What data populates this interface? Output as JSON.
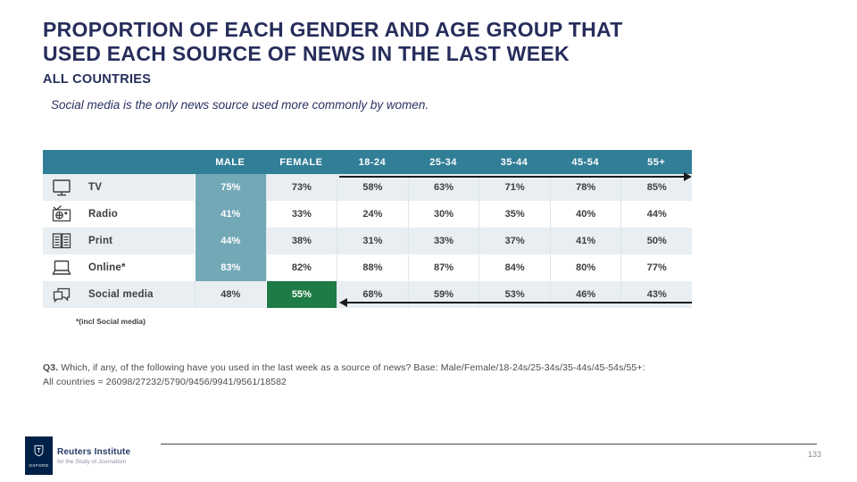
{
  "slide": {
    "title_line1": "PROPORTION OF EACH GENDER AND AGE GROUP THAT",
    "title_line2": "USED EACH SOURCE OF NEWS IN THE LAST WEEK",
    "subtitle": "ALL COUNTRIES",
    "highlight_note": "Social media is the only news source used more commonly by women.",
    "footnote": "*(incl Social media)",
    "question_prefix": "Q3.",
    "question_line1": "Which, if any, of the following have you used in the last week as a source of news? Base: Male/Female/18-24s/25-34s/35-44s/45-54s/55+:",
    "question_line2": "All countries = 26098/27232/5790/9456/9941/9561/18582",
    "page_number": "133"
  },
  "table": {
    "columns": [
      "MALE",
      "FEMALE",
      "18-24",
      "25-34",
      "35-44",
      "45-54",
      "55+"
    ],
    "rows": [
      {
        "label": "TV",
        "icon": "tv-icon",
        "values": [
          "75%",
          "73%",
          "58%",
          "63%",
          "71%",
          "78%",
          "85%"
        ],
        "highlight_col": 0,
        "highlight_color": "teal"
      },
      {
        "label": "Radio",
        "icon": "radio-icon",
        "values": [
          "41%",
          "33%",
          "24%",
          "30%",
          "35%",
          "40%",
          "44%"
        ],
        "highlight_col": 0,
        "highlight_color": "teal"
      },
      {
        "label": "Print",
        "icon": "print-icon",
        "values": [
          "44%",
          "38%",
          "31%",
          "33%",
          "37%",
          "41%",
          "50%"
        ],
        "highlight_col": 0,
        "highlight_color": "teal"
      },
      {
        "label": "Online*",
        "icon": "online-icon",
        "values": [
          "83%",
          "82%",
          "88%",
          "87%",
          "84%",
          "80%",
          "77%"
        ],
        "highlight_col": 0,
        "highlight_color": "teal"
      },
      {
        "label": "Social media",
        "icon": "social-media-icon",
        "values": [
          "48%",
          "55%",
          "68%",
          "59%",
          "53%",
          "46%",
          "43%"
        ],
        "highlight_col": 1,
        "highlight_color": "green"
      }
    ]
  },
  "footer": {
    "logo_text": "OXFORD",
    "institute_name": "Reuters Institute",
    "institute_sub": "for the Study of Journalism"
  },
  "colors": {
    "header_teal": "#317e97",
    "male_highlight_teal": "#73a8b7",
    "female_highlight_green": "#1e7b45",
    "row_tint": "#e8eef1",
    "title_navy": "#262d5b",
    "oxford_navy": "#002147"
  },
  "chart_data": {
    "type": "table",
    "title": "PROPORTION OF EACH GENDER AND AGE GROUP THAT USED EACH SOURCE OF NEWS IN THE LAST WEEK",
    "subtitle": "ALL COUNTRIES",
    "annotation": "Social media is the only news source used more commonly by women.",
    "units": "percent",
    "columns": [
      "MALE",
      "FEMALE",
      "18-24",
      "25-34",
      "35-44",
      "45-54",
      "55+"
    ],
    "rows": [
      {
        "label": "TV",
        "values": [
          75,
          73,
          58,
          63,
          71,
          78,
          85
        ]
      },
      {
        "label": "Radio",
        "values": [
          41,
          33,
          24,
          30,
          35,
          40,
          44
        ]
      },
      {
        "label": "Print",
        "values": [
          44,
          38,
          31,
          33,
          37,
          41,
          50
        ]
      },
      {
        "label": "Online*",
        "values": [
          83,
          82,
          88,
          87,
          84,
          80,
          77
        ]
      },
      {
        "label": "Social media",
        "values": [
          48,
          55,
          68,
          59,
          53,
          46,
          43
        ]
      }
    ],
    "highlights": [
      {
        "row": "TV",
        "column": "MALE",
        "style": "teal"
      },
      {
        "row": "Radio",
        "column": "MALE",
        "style": "teal"
      },
      {
        "row": "Print",
        "column": "MALE",
        "style": "teal"
      },
      {
        "row": "Online*",
        "column": "MALE",
        "style": "teal"
      },
      {
        "row": "Social media",
        "column": "FEMALE",
        "style": "green"
      }
    ],
    "notes": "Black arrow across age columns of TV row points right (usage rises with age); black arrow across age columns of Social media row points left toward highlighted FEMALE cell (usage falls with age)."
  }
}
